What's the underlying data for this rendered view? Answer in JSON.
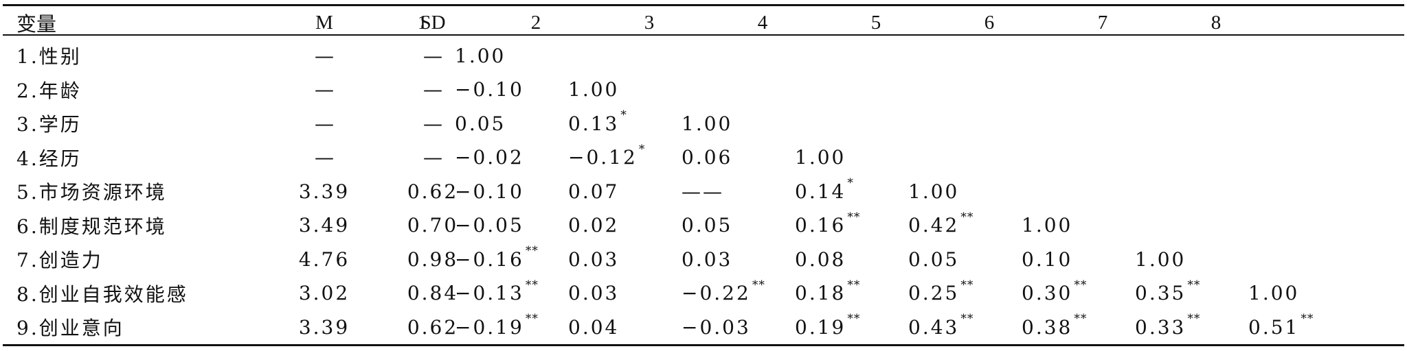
{
  "table": {
    "headers": [
      "变量",
      "M",
      "SD",
      "1",
      "2",
      "3",
      "4",
      "5",
      "6",
      "7",
      "8"
    ],
    "rows": [
      {
        "label": "1.性别",
        "m": "—",
        "sd": "—",
        "c": [
          [
            "1.00",
            ""
          ]
        ]
      },
      {
        "label": "2.年龄",
        "m": "—",
        "sd": "—",
        "c": [
          [
            "−0.10",
            ""
          ],
          [
            "1.00",
            ""
          ]
        ]
      },
      {
        "label": "3.学历",
        "m": "—",
        "sd": "—",
        "c": [
          [
            "0.05",
            ""
          ],
          [
            "0.13",
            "*"
          ],
          [
            "1.00",
            ""
          ]
        ]
      },
      {
        "label": "4.经历",
        "m": "—",
        "sd": "—",
        "c": [
          [
            "−0.02",
            ""
          ],
          [
            "−0.12",
            "*"
          ],
          [
            "0.06",
            ""
          ],
          [
            "1.00",
            ""
          ]
        ]
      },
      {
        "label": "5.市场资源环境",
        "m": "3.39",
        "sd": "0.62",
        "c": [
          [
            "−0.10",
            ""
          ],
          [
            "0.07",
            ""
          ],
          [
            "——",
            ""
          ],
          [
            "0.14",
            "*"
          ],
          [
            "1.00",
            ""
          ]
        ]
      },
      {
        "label": "6.制度规范环境",
        "m": "3.49",
        "sd": "0.70",
        "c": [
          [
            "−0.05",
            ""
          ],
          [
            "0.02",
            ""
          ],
          [
            "0.05",
            ""
          ],
          [
            "0.16",
            "**"
          ],
          [
            "0.42",
            "**"
          ],
          [
            "1.00",
            ""
          ]
        ]
      },
      {
        "label": "7.创造力",
        "m": "4.76",
        "sd": "0.98",
        "c": [
          [
            "−0.16",
            "**"
          ],
          [
            "0.03",
            ""
          ],
          [
            "0.03",
            ""
          ],
          [
            "0.08",
            ""
          ],
          [
            "0.05",
            ""
          ],
          [
            "0.10",
            ""
          ],
          [
            "1.00",
            ""
          ]
        ]
      },
      {
        "label": "8.创业自我效能感",
        "m": "3.02",
        "sd": "0.84",
        "c": [
          [
            "−0.13",
            "**"
          ],
          [
            "0.03",
            ""
          ],
          [
            "−0.22",
            "**"
          ],
          [
            "0.18",
            "**"
          ],
          [
            "0.25",
            "**"
          ],
          [
            "0.30",
            "**"
          ],
          [
            "0.35",
            "**"
          ],
          [
            "1.00",
            ""
          ]
        ]
      },
      {
        "label": "9.创业意向",
        "m": "3.39",
        "sd": "0.62",
        "c": [
          [
            "−0.19",
            "**"
          ],
          [
            "0.04",
            ""
          ],
          [
            "−0.03",
            ""
          ],
          [
            "0.19",
            "**"
          ],
          [
            "0.43",
            "**"
          ],
          [
            "0.38",
            "**"
          ],
          [
            "0.33",
            "**"
          ],
          [
            "0.51",
            "**"
          ]
        ]
      }
    ]
  }
}
